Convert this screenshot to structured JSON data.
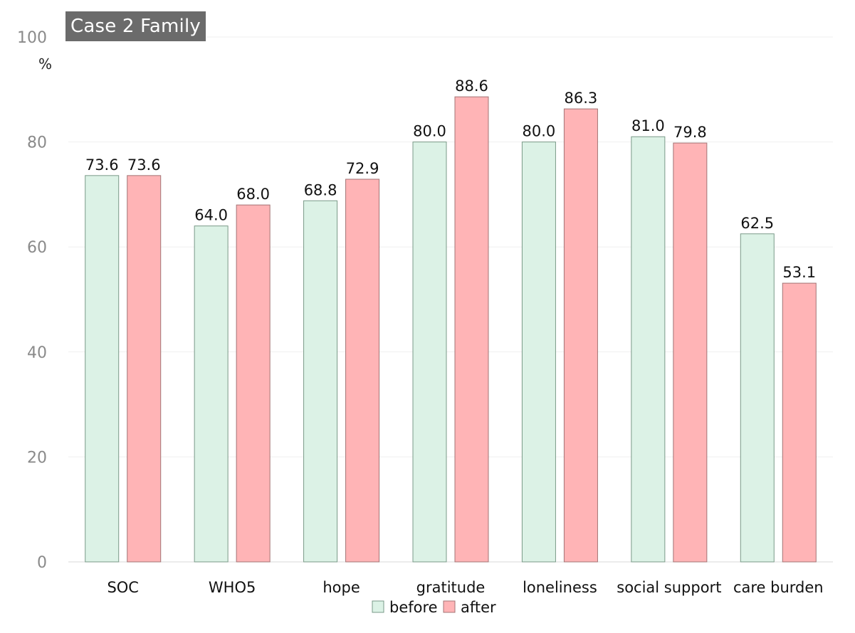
{
  "chart_data": {
    "type": "bar",
    "title": "Case 2 Family",
    "ylabel": "%",
    "xlabel": "",
    "ylim": [
      0,
      100
    ],
    "yticks": [
      0,
      20,
      40,
      60,
      80,
      100
    ],
    "grid": true,
    "legend_position": "bottom",
    "categories": [
      "SOC",
      "WHO5",
      "hope",
      "gratitude",
      "loneliness",
      "social support",
      "care burden"
    ],
    "series": [
      {
        "name": "before",
        "color": "#dcf2e6",
        "edge": "#7a9a88",
        "values": [
          73.6,
          64.0,
          68.8,
          80.0,
          80.0,
          81.0,
          62.5
        ],
        "labels": [
          "73.6",
          "64.0",
          "68.8",
          "80.0",
          "80.0",
          "81.0",
          "62.5"
        ]
      },
      {
        "name": "after",
        "color": "#ffb4b6",
        "edge": "#a37475",
        "values": [
          73.6,
          68.0,
          72.9,
          88.6,
          86.3,
          79.8,
          53.1
        ],
        "labels": [
          "73.6",
          "68.0",
          "72.9",
          "88.6",
          "86.3",
          "79.8",
          "53.1"
        ]
      }
    ]
  }
}
